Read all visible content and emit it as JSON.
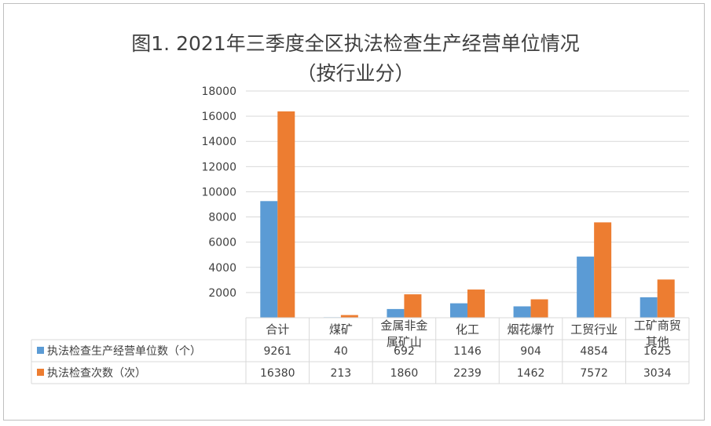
{
  "chart_data": {
    "type": "bar",
    "title": "图1. 2021年三季度全区执法检查生产经营单位情况",
    "subtitle": "（按行业分）",
    "categories": [
      [
        "合计"
      ],
      [
        "煤矿"
      ],
      [
        "金属非金",
        "属矿山"
      ],
      [
        "化工"
      ],
      [
        "烟花爆竹"
      ],
      [
        "工贸行业"
      ],
      [
        "工矿商贸",
        "其他"
      ]
    ],
    "series": [
      {
        "name": "执法检查生产经营单位数（个）",
        "color": "#5b9bd5",
        "values": [
          9261,
          40,
          692,
          1146,
          904,
          4854,
          1625
        ]
      },
      {
        "name": "执法检查次数（次）",
        "color": "#ed7d31",
        "values": [
          16380,
          213,
          1860,
          2239,
          1462,
          7572,
          3034
        ]
      }
    ],
    "yticks": [
      2000,
      4000,
      6000,
      8000,
      10000,
      12000,
      14000,
      16000,
      18000
    ],
    "ylim": [
      0,
      18000
    ],
    "grid": true,
    "legend": "data-table"
  }
}
